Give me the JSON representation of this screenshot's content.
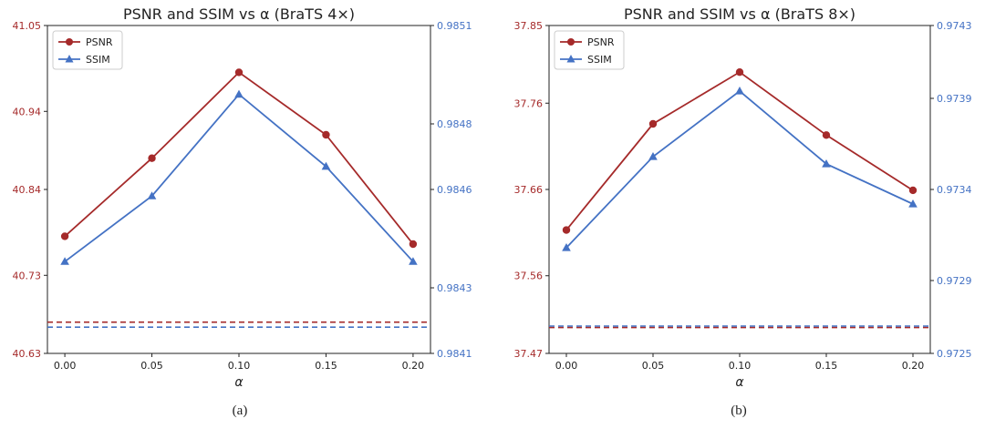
{
  "colors": {
    "psnr": "#a52a2a",
    "ssim": "#4472c4",
    "axis": "#222222"
  },
  "chart_data": [
    {
      "type": "line",
      "title": "PSNR and SSIM vs α (BraTS 4×)",
      "xlabel": "α",
      "x": [
        0.0,
        0.05,
        0.1,
        0.15,
        0.2
      ],
      "x_tick_labels": [
        "0.00",
        "0.05",
        "0.10",
        "0.15",
        "0.20"
      ],
      "xlim": [
        -0.01,
        0.21
      ],
      "left_axis": {
        "ylim": [
          40.63,
          41.05
        ],
        "ticks": [
          40.63,
          40.73,
          40.84,
          40.94,
          41.05
        ],
        "tick_labels": [
          "40.63",
          "40.73",
          "40.84",
          "40.94",
          "41.05"
        ]
      },
      "right_axis": {
        "ylim": [
          0.9841,
          0.9851
        ],
        "ticks": [
          0.9841,
          0.9843,
          0.9846,
          0.9848,
          0.9851
        ],
        "tick_labels": [
          "0.9841",
          "0.9843",
          "0.9846",
          "0.9848",
          "0.9851"
        ]
      },
      "series": [
        {
          "name": "PSNR",
          "axis": "left",
          "marker": "circle",
          "values": [
            40.78,
            40.88,
            40.99,
            40.91,
            40.77
          ],
          "baseline": 40.67
        },
        {
          "name": "SSIM",
          "axis": "right",
          "marker": "triangle",
          "values": [
            0.98438,
            0.98458,
            0.98489,
            0.98467,
            0.98438
          ],
          "baseline": 0.98418
        }
      ],
      "legend": "top-left",
      "caption": "(a)"
    },
    {
      "type": "line",
      "title": "PSNR and SSIM vs α (BraTS 8×)",
      "xlabel": "α",
      "x": [
        0.0,
        0.05,
        0.1,
        0.15,
        0.2
      ],
      "x_tick_labels": [
        "0.00",
        "0.05",
        "0.10",
        "0.15",
        "0.20"
      ],
      "xlim": [
        -0.01,
        0.21
      ],
      "left_axis": {
        "ylim": [
          37.47,
          37.85
        ],
        "ticks": [
          37.47,
          37.56,
          37.66,
          37.76,
          37.85
        ],
        "tick_labels": [
          "37.47",
          "37.56",
          "37.66",
          "37.76",
          "37.85"
        ]
      },
      "right_axis": {
        "ylim": [
          0.9725,
          0.9743
        ],
        "ticks": [
          0.9725,
          0.9729,
          0.9734,
          0.9739,
          0.9743
        ],
        "tick_labels": [
          "0.9725",
          "0.9729",
          "0.9734",
          "0.9739",
          "0.9743"
        ]
      },
      "series": [
        {
          "name": "PSNR",
          "axis": "left",
          "marker": "circle",
          "values": [
            37.613,
            37.736,
            37.796,
            37.723,
            37.659
          ],
          "baseline": 37.5
        },
        {
          "name": "SSIM",
          "axis": "right",
          "marker": "triangle",
          "values": [
            0.97308,
            0.97358,
            0.97394,
            0.97354,
            0.97332
          ],
          "baseline": 0.97265
        }
      ],
      "legend": "top-left",
      "caption": "(b)"
    }
  ]
}
